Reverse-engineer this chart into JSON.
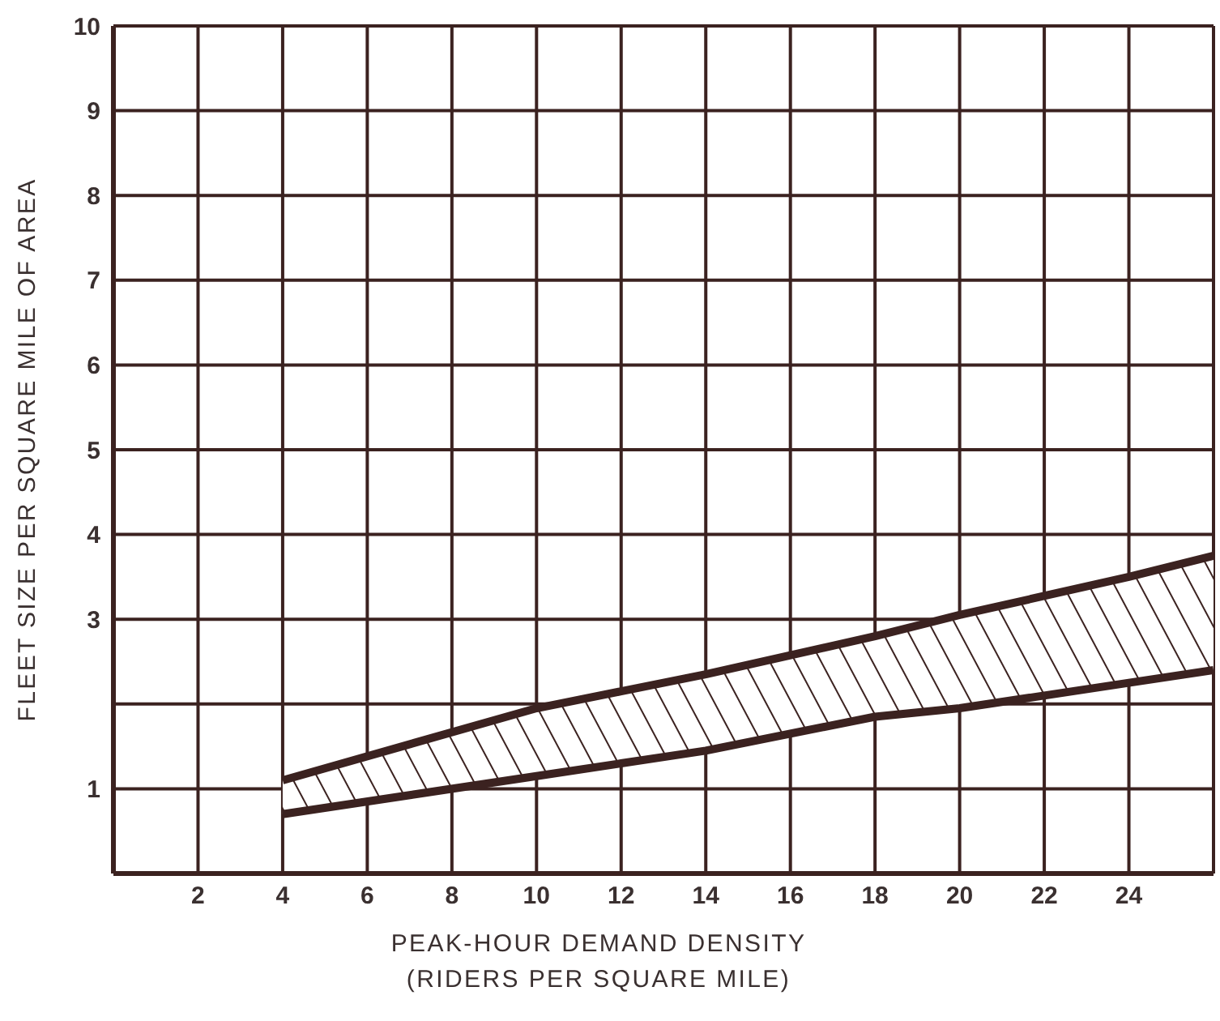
{
  "chart_data": {
    "type": "line",
    "xlabel": "PEAK-HOUR DEMAND DENSITY\n(RIDERS PER SQUARE MILE)",
    "ylabel": "FLEET SIZE PER SQUARE MILE OF AREA",
    "x": [
      4,
      10,
      12,
      14,
      18,
      20,
      24,
      26
    ],
    "series": [
      {
        "color": "#3b2220",
        "values": [
          1.1,
          1.95,
          2.15,
          2.35,
          2.8,
          3.05,
          3.5,
          3.75
        ],
        "lower": [
          0.7,
          1.15,
          1.3,
          1.45,
          1.85,
          1.95,
          2.25,
          2.4
        ],
        "upper": [
          1.1,
          1.95,
          2.15,
          2.35,
          2.8,
          3.05,
          3.5,
          3.75
        ]
      },
      {
        "color": "#3b2220",
        "values": [
          0.7,
          1.15,
          1.3,
          1.45,
          1.85,
          1.95,
          2.25,
          2.4
        ]
      }
    ],
    "xlim": [
      0,
      26
    ],
    "xticks": [
      2,
      4,
      6,
      8,
      10,
      12,
      14,
      16,
      18,
      20,
      22,
      24,
      {
        "value": 26,
        "label": null
      }
    ],
    "ylim": [
      0,
      10
    ],
    "yticks": [
      1,
      {
        "value": 2,
        "label": null
      },
      3,
      4,
      5,
      6,
      7,
      8,
      9,
      10
    ],
    "grid": true
  }
}
